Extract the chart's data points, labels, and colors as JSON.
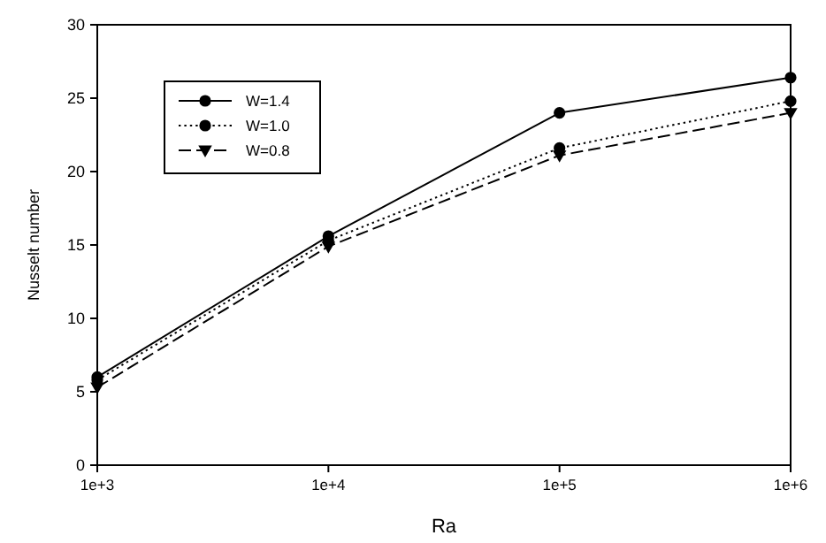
{
  "chart_data": {
    "type": "line",
    "xlabel": "Ra",
    "ylabel": "Nusselt number",
    "log": "x",
    "x": [
      1000,
      10000,
      100000,
      1000000
    ],
    "xlim": [
      1000,
      1000000
    ],
    "xticks": [
      {
        "value": 1000,
        "label": "1e+3"
      },
      {
        "value": 10000,
        "label": "1e+4"
      },
      {
        "value": 100000,
        "label": "1e+5"
      },
      {
        "value": 1000000,
        "label": "1e+6"
      }
    ],
    "ylim": [
      0,
      30
    ],
    "yticks": [
      0,
      5,
      10,
      15,
      20,
      25,
      30
    ],
    "grid": false,
    "legend": "top left",
    "series": [
      {
        "name": "W=1.4",
        "color": "#000000",
        "values": [
          6.0,
          15.6,
          24.0,
          26.4
        ],
        "marker": "circle",
        "line_style": "solid"
      },
      {
        "name": "W=1.0",
        "color": "#000000",
        "values": [
          5.8,
          15.3,
          21.6,
          24.8
        ],
        "marker": "circle",
        "line_style": "dotted"
      },
      {
        "name": "W=0.8",
        "color": "#000000",
        "values": [
          5.3,
          14.9,
          21.1,
          24.0
        ],
        "marker": "triangle",
        "line_style": "dashed"
      }
    ]
  }
}
